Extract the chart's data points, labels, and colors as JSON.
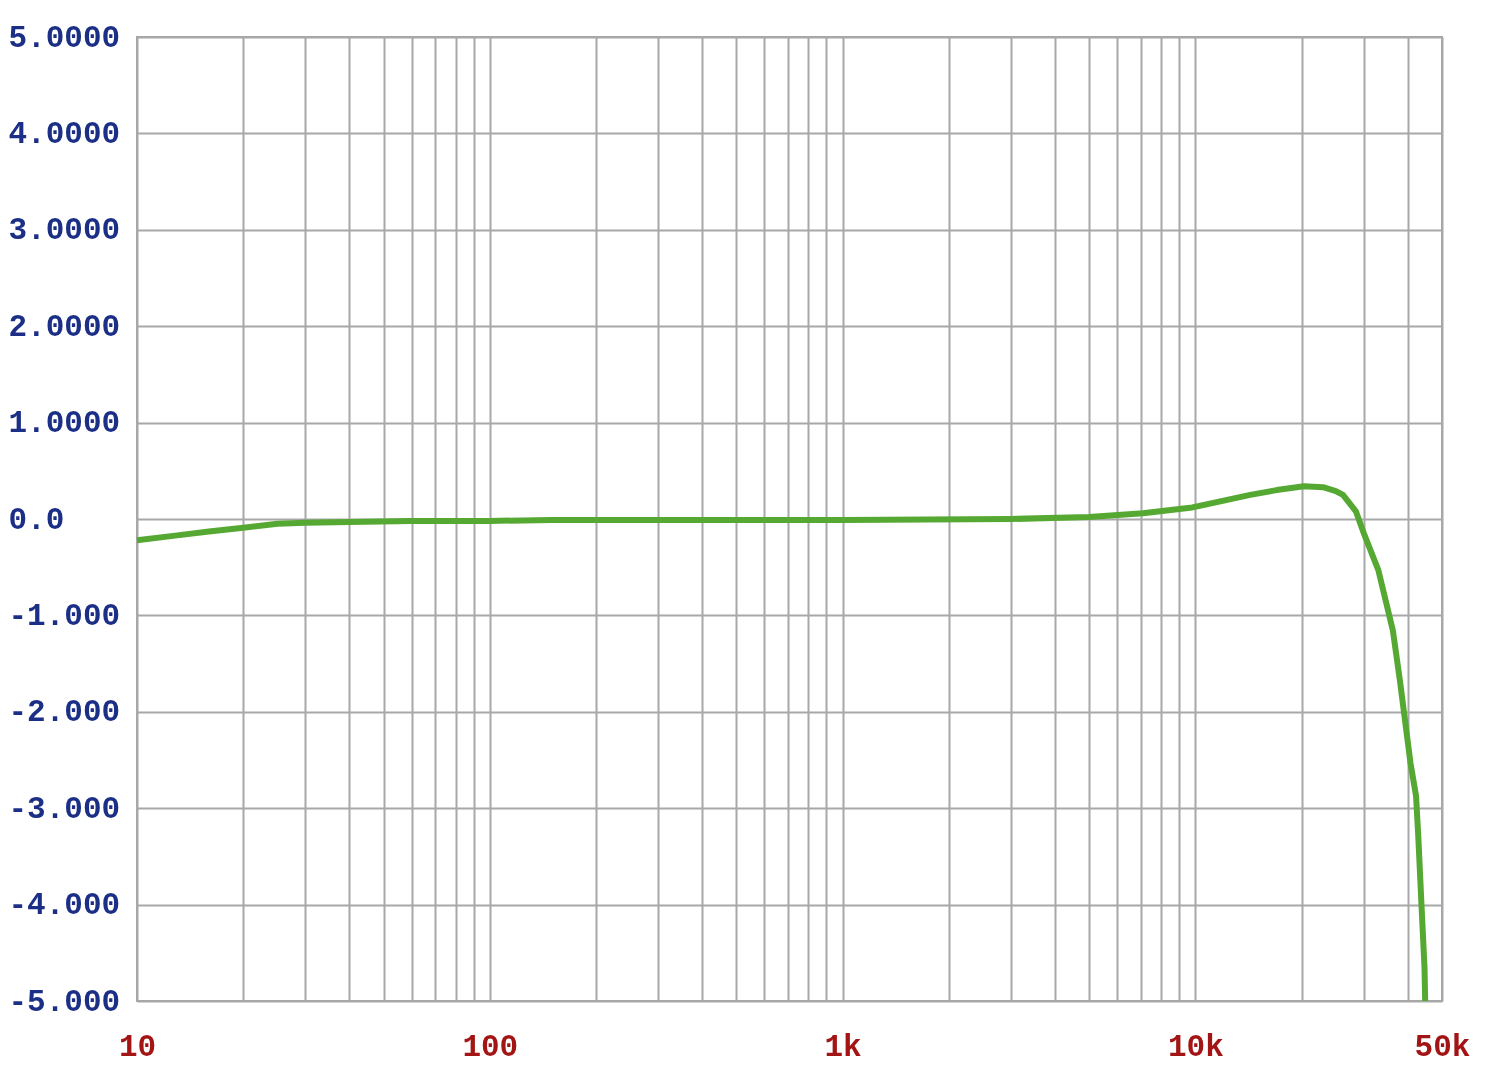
{
  "chart_data": {
    "type": "line",
    "log": "x",
    "grid": true,
    "line_style": "solid",
    "x": [
      10,
      13,
      16,
      20,
      25,
      30,
      40,
      60,
      100,
      150,
      300,
      1000,
      3000,
      5000,
      7100,
      9800,
      14300,
      17000,
      20300,
      23000,
      25000,
      26200,
      28500,
      30100,
      33000,
      36300,
      38000,
      40700,
      42200,
      42800,
      43700,
      44600,
      44800
    ],
    "series": [
      {
        "color": "#55a832",
        "values": [
          -0.22,
          -0.17,
          -0.13,
          -0.09,
          -0.05,
          -0.04,
          -0.03,
          -0.02,
          -0.02,
          -0.01,
          -0.01,
          -0.01,
          0.0,
          0.02,
          0.06,
          0.12,
          0.25,
          0.3,
          0.34,
          0.33,
          0.29,
          0.25,
          0.08,
          -0.16,
          -0.53,
          -1.16,
          -1.68,
          -2.53,
          -2.87,
          -3.27,
          -3.98,
          -4.65,
          -5.0
        ]
      }
    ],
    "xlim": [
      10,
      50000
    ],
    "ylim": [
      -5,
      5
    ],
    "xticks": [
      10,
      {
        "value": 20,
        "label": null
      },
      {
        "value": 30,
        "label": null
      },
      {
        "value": 40,
        "label": null
      },
      {
        "value": 50,
        "label": null
      },
      {
        "value": 60,
        "label": null
      },
      {
        "value": 70,
        "label": null
      },
      {
        "value": 80,
        "label": null
      },
      {
        "value": 90,
        "label": null
      },
      100,
      {
        "value": 200,
        "label": null
      },
      {
        "value": 300,
        "label": null
      },
      {
        "value": 400,
        "label": null
      },
      {
        "value": 500,
        "label": null
      },
      {
        "value": 600,
        "label": null
      },
      {
        "value": 700,
        "label": null
      },
      {
        "value": 800,
        "label": null
      },
      {
        "value": 900,
        "label": null
      },
      {
        "value": 1000,
        "label": "1k"
      },
      {
        "value": 2000,
        "label": null
      },
      {
        "value": 3000,
        "label": null
      },
      {
        "value": 4000,
        "label": null
      },
      {
        "value": 5000,
        "label": null
      },
      {
        "value": 6000,
        "label": null
      },
      {
        "value": 7000,
        "label": null
      },
      {
        "value": 8000,
        "label": null
      },
      {
        "value": 9000,
        "label": null
      },
      {
        "value": 10000,
        "label": "10k"
      },
      {
        "value": 20000,
        "label": null
      },
      {
        "value": 30000,
        "label": null
      },
      {
        "value": 40000,
        "label": null
      },
      {
        "value": 50000,
        "label": "50k"
      }
    ],
    "yticks": [
      {
        "value": 5,
        "label": "5.0000"
      },
      {
        "value": 4,
        "label": "4.0000"
      },
      {
        "value": 3,
        "label": "3.0000"
      },
      {
        "value": 2,
        "label": "2.0000"
      },
      {
        "value": 1,
        "label": "1.0000"
      },
      {
        "value": 0,
        "label": "0.0"
      },
      {
        "value": -1,
        "label": "-1.000"
      },
      {
        "value": -2,
        "label": "-2.000"
      },
      {
        "value": -3,
        "label": "-3.000"
      },
      {
        "value": -4,
        "label": "-4.000"
      },
      {
        "value": -5,
        "label": "-5.000"
      }
    ]
  }
}
